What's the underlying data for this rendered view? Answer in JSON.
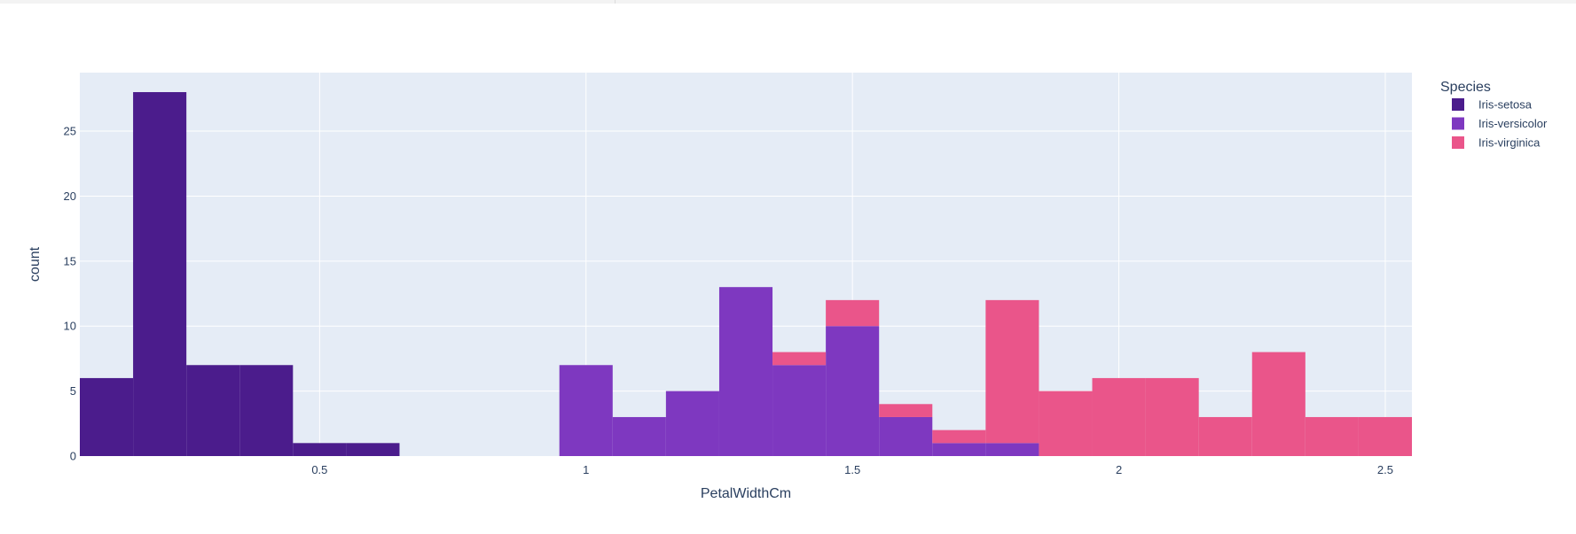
{
  "chart_data": {
    "type": "bar",
    "barmode": "stack",
    "xlabel": "PetalWidthCm",
    "ylabel": "count",
    "xlim": [
      0.05,
      2.55
    ],
    "ylim": [
      0,
      29.5
    ],
    "bin_width": 0.1,
    "x": [
      0.1,
      0.2,
      0.3,
      0.4,
      0.5,
      0.6,
      0.7,
      0.8,
      0.9,
      1.0,
      1.1,
      1.2,
      1.3,
      1.4,
      1.5,
      1.6,
      1.7,
      1.8,
      1.9,
      2.0,
      2.1,
      2.2,
      2.3,
      2.4,
      2.5
    ],
    "x_ticks": [
      0.5,
      1,
      1.5,
      2,
      2.5
    ],
    "x_tick_labels": [
      "0.5",
      "1",
      "1.5",
      "2",
      "2.5"
    ],
    "y_ticks": [
      0,
      5,
      10,
      15,
      20,
      25
    ],
    "y_tick_labels": [
      "0",
      "5",
      "10",
      "15",
      "20",
      "25"
    ],
    "grid": true,
    "legend": {
      "title": "Species",
      "placement": "right"
    },
    "series": [
      {
        "name": "Iris-setosa",
        "color": "#4b1c8c",
        "values": [
          6,
          28,
          7,
          7,
          1,
          1,
          0,
          0,
          0,
          0,
          0,
          0,
          0,
          0,
          0,
          0,
          0,
          0,
          0,
          0,
          0,
          0,
          0,
          0,
          0
        ]
      },
      {
        "name": "Iris-versicolor",
        "color": "#7e38c0",
        "values": [
          0,
          0,
          0,
          0,
          0,
          0,
          0,
          0,
          0,
          7,
          3,
          5,
          13,
          7,
          10,
          3,
          1,
          1,
          0,
          0,
          0,
          0,
          0,
          0,
          0
        ]
      },
      {
        "name": "Iris-virginica",
        "color": "#ea558a",
        "values": [
          0,
          0,
          0,
          0,
          0,
          0,
          0,
          0,
          0,
          0,
          0,
          0,
          0,
          1,
          2,
          1,
          1,
          11,
          5,
          6,
          6,
          3,
          8,
          3,
          3
        ]
      }
    ]
  }
}
